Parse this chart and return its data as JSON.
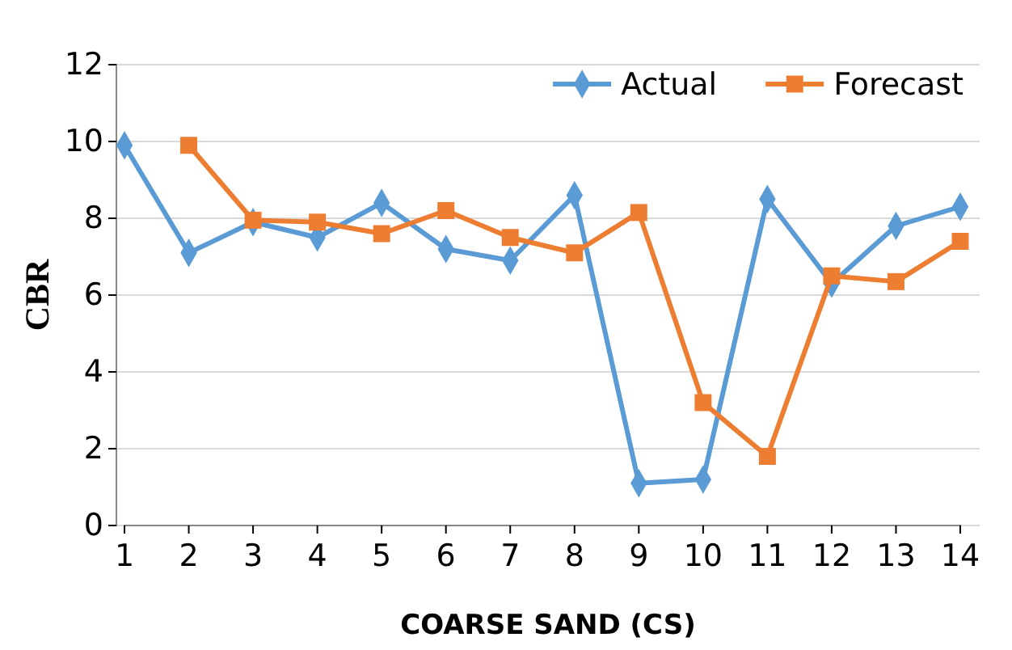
{
  "chart_data": {
    "type": "line",
    "xlabel": "COARSE SAND (CS)",
    "ylabel": "CBR",
    "categories": [
      "1",
      "2",
      "3",
      "4",
      "5",
      "6",
      "7",
      "8",
      "9",
      "10",
      "11",
      "12",
      "13",
      "14"
    ],
    "series": [
      {
        "name": "Actual",
        "color": "#5b9bd5",
        "marker": "diamond",
        "values": [
          9.9,
          7.1,
          7.9,
          7.5,
          8.4,
          7.2,
          6.9,
          8.6,
          1.1,
          1.2,
          8.5,
          6.3,
          7.8,
          8.3
        ]
      },
      {
        "name": "Forecast",
        "color": "#ed7d31",
        "marker": "square",
        "values": [
          null,
          9.9,
          7.95,
          7.9,
          7.6,
          8.2,
          7.5,
          7.1,
          8.15,
          3.2,
          1.8,
          6.5,
          6.35,
          7.4
        ]
      }
    ],
    "ylim": [
      0,
      12
    ],
    "yticks": [
      0,
      2,
      4,
      6,
      8,
      10,
      12
    ],
    "grid": "y",
    "legend": "top right"
  }
}
